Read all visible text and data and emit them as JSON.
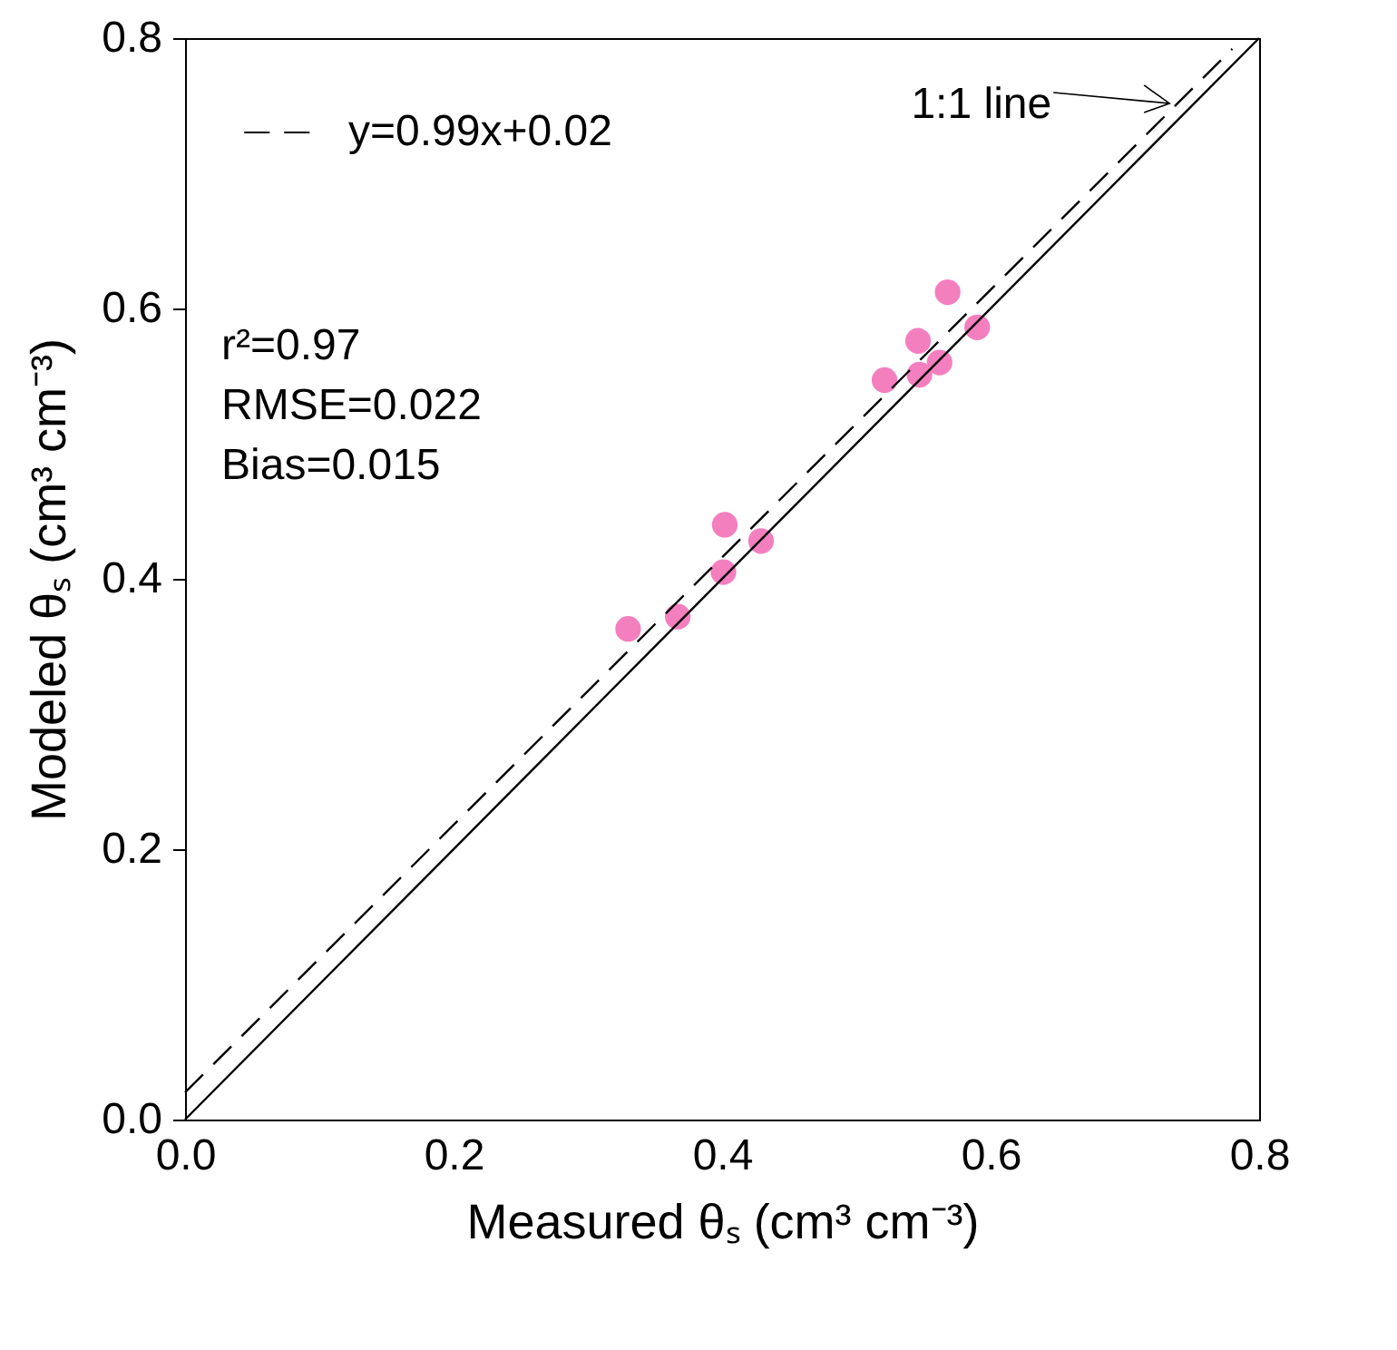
{
  "chart_data": {
    "type": "scatter",
    "xlabel": "Measured θₛ (cm³ cm⁻³)",
    "ylabel": "Modeled θₛ (cm³ cm⁻³)",
    "xlim": [
      0,
      0.8
    ],
    "ylim": [
      0,
      0.8
    ],
    "xticks": [
      {
        "value": 0,
        "label": "0.0"
      },
      0.2,
      0.4,
      0.6,
      0.8
    ],
    "yticks": [
      {
        "value": 0,
        "label": "0.0"
      },
      0.2,
      0.4,
      0.6,
      0.8
    ],
    "grid": false,
    "legend": "top left",
    "series": [
      {
        "marker": "circle",
        "color": "#f47fbf",
        "x": [
          0.33,
          0.367,
          0.401,
          0.402,
          0.429,
          0.521,
          0.546,
          0.547,
          0.562,
          0.568,
          0.59
        ],
        "values": [
          0.363,
          0.372,
          0.405,
          0.44,
          0.428,
          0.547,
          0.576,
          0.551,
          0.56,
          0.612,
          0.586
        ]
      },
      {
        "type": "line",
        "color": "#000000",
        "line_style": "solid",
        "x": [
          0,
          0.8
        ],
        "values": [
          0,
          0.8
        ]
      },
      {
        "type": "line",
        "name": "y=0.99x+0.02",
        "color": "#000000",
        "line_style": "dashed",
        "x": [
          0,
          0.78
        ],
        "values": [
          0.02,
          0.792
        ]
      }
    ],
    "annotations": [
      {
        "text": "1:1 line",
        "x": 0.74,
        "y": 0.745
      },
      "r²=0.97",
      "RMSE=0.022",
      "Bias=0.015"
    ]
  }
}
